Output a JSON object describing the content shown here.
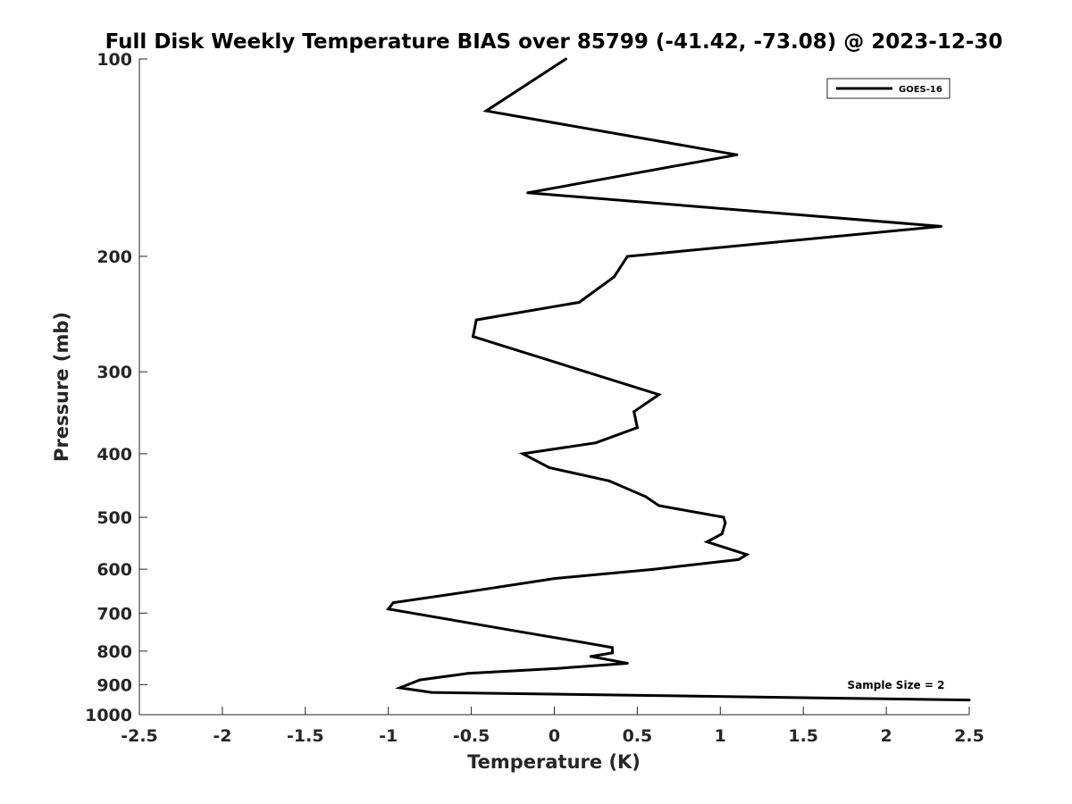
{
  "chart_data": {
    "type": "line",
    "title": "Full Disk Weekly Temperature BIAS over 85799 (-41.42, -73.08) @ 2023-12-30",
    "xlabel": "Temperature (K)",
    "ylabel": "Pressure (mb)",
    "xlim": [
      -2.5,
      2.5
    ],
    "ylim": [
      100,
      1000
    ],
    "y_scale": "log",
    "y_reversed": true,
    "x_ticks": [
      -2.5,
      -2,
      -1.5,
      -1,
      -0.5,
      0,
      0.5,
      1,
      1.5,
      2,
      2.5
    ],
    "x_tick_labels": [
      "-2.5",
      "-2",
      "-1.5",
      "-1",
      "-0.5",
      "0",
      "0.5",
      "1",
      "1.5",
      "2",
      "2.5"
    ],
    "y_ticks": [
      100,
      200,
      300,
      400,
      500,
      600,
      700,
      800,
      900,
      1000
    ],
    "y_tick_labels": [
      "100",
      "200",
      "300",
      "400",
      "500",
      "600",
      "700",
      "800",
      "900",
      "1000"
    ],
    "grid": false,
    "legend_position": "top-right",
    "annotation": "Sample Size = 2",
    "series": [
      {
        "name": "GOES-16",
        "color": "#000000",
        "points": [
          [
            0.07,
            100
          ],
          [
            -0.41,
            120
          ],
          [
            1.1,
            140
          ],
          [
            -0.16,
            160
          ],
          [
            2.33,
            180
          ],
          [
            0.44,
            200
          ],
          [
            0.36,
            215
          ],
          [
            0.15,
            235
          ],
          [
            -0.47,
            250
          ],
          [
            -0.49,
            265
          ],
          [
            0.63,
            325
          ],
          [
            0.48,
            345
          ],
          [
            0.5,
            365
          ],
          [
            0.25,
            385
          ],
          [
            -0.19,
            400
          ],
          [
            -0.03,
            420
          ],
          [
            0.33,
            440
          ],
          [
            0.55,
            465
          ],
          [
            0.63,
            480
          ],
          [
            1.02,
            500
          ],
          [
            1.03,
            510
          ],
          [
            1.01,
            530
          ],
          [
            0.92,
            545
          ],
          [
            1.16,
            570
          ],
          [
            1.11,
            580
          ],
          [
            0.6,
            600
          ],
          [
            0.0,
            620
          ],
          [
            -0.53,
            650
          ],
          [
            -0.97,
            675
          ],
          [
            -1.0,
            690
          ],
          [
            -0.17,
            750
          ],
          [
            0.16,
            775
          ],
          [
            0.35,
            790
          ],
          [
            0.35,
            805
          ],
          [
            0.22,
            815
          ],
          [
            0.44,
            835
          ],
          [
            0.02,
            850
          ],
          [
            -0.52,
            865
          ],
          [
            -0.81,
            885
          ],
          [
            -0.93,
            910
          ],
          [
            -0.74,
            925
          ],
          [
            2.5,
            950
          ]
        ]
      }
    ]
  }
}
